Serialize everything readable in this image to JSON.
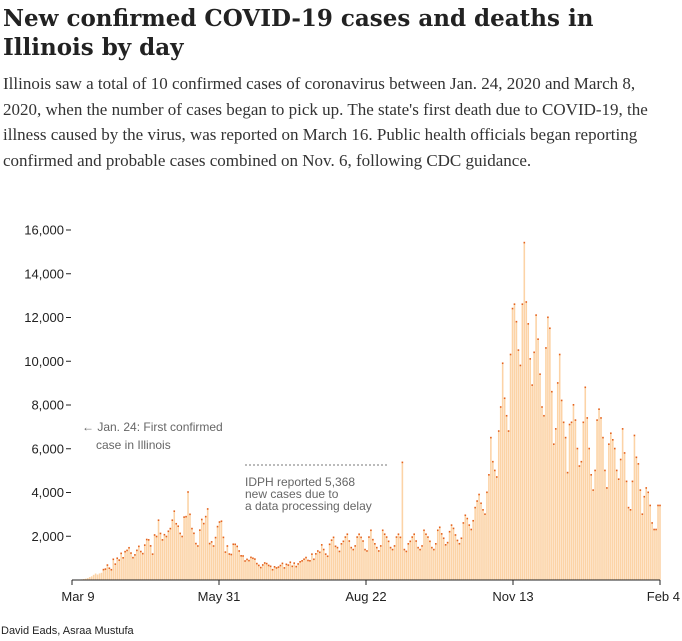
{
  "title": "New confirmed COVID-19 cases and deaths in Illinois by day",
  "subtitle": "Illinois saw a total of 10 confirmed cases of coronavirus between Jan. 24, 2020 and March 8, 2020, when the number of cases began to pick up. The state's first death due to COVID-19, the illness caused by the virus, was reported on March 16. Public health officials began reporting confirmed and probable cases combined on Nov. 6, following CDC guidance.",
  "credit": "David Eads, Asraa Mustufa",
  "colors": {
    "cases_bar": "#fcd3a6",
    "deaths_dot": "#e4621c",
    "axis": "#222222",
    "annotation": "#666666"
  },
  "chart_data": {
    "type": "bar",
    "x_start": "2020-03-09",
    "x_end": "2021-02-04",
    "x_ticks": [
      "Mar 9",
      "May 31",
      "Aug 22",
      "Nov 13",
      "Feb 4"
    ],
    "y_ticks": [
      "2,000",
      "4,000",
      "6,000",
      "8,000",
      "10,000",
      "12,000",
      "14,000",
      "16,000"
    ],
    "ylim": [
      0,
      16000
    ],
    "grid": false,
    "series": [
      {
        "values": [
          5,
          7,
          8,
          15,
          21,
          30,
          45,
          60,
          89,
          134,
          168,
          236,
          296,
          250,
          300,
          330,
          465,
          488,
          673,
          530,
          461,
          937,
          715,
          986,
          899,
          1209,
          1006,
          1287,
          1344,
          1465,
          1222,
          1013,
          1140,
          1346,
          1529,
          1293,
          1197,
          1585,
          1842,
          1826,
          1551,
          1173,
          2049,
          1980,
          2724,
          2119,
          1826,
          2062,
          1980,
          2219,
          2341,
          2724,
          3137,
          2563,
          2450,
          2122,
          1980,
          2866,
          2887,
          4014,
          2994,
          2341,
          2126,
          1656,
          1545,
          2270,
          2758,
          2570,
          2888,
          3239,
          1656,
          1734,
          1545,
          1930,
          2432,
          2641,
          2678,
          1940,
          1266,
          1545,
          1178,
          1156,
          1625,
          1622,
          1527,
          1317,
          1097,
          1090,
          860,
          934,
          878,
          1026,
          985,
          946,
          741,
          658,
          560,
          679,
          770,
          741,
          658,
          616,
          462,
          594,
          542,
          580,
          652,
          751,
          544,
          707,
          672,
          803,
          615,
          762,
          604,
          726,
          824,
          868,
          941,
          1018,
          884,
          869,
          1173,
          938,
          1187,
          1317,
          1257,
          1598,
          1384,
          1173,
          1076,
          1624,
          1812,
          1941,
          1532,
          1471,
          1298,
          1645,
          1759,
          1953,
          2084,
          1772,
          1471,
          1382,
          1549,
          1953,
          2084,
          1941,
          1772,
          1382,
          1319,
          1953,
          2264,
          1835,
          1645,
          1471,
          1319,
          1549,
          2264,
          2084,
          1953,
          1759,
          1471,
          1382,
          1549,
          1953,
          2084,
          1941,
          5368,
          1382,
          1298,
          1645,
          1759,
          1953,
          2084,
          1772,
          1471,
          1382,
          1549,
          2264,
          2084,
          1953,
          1759,
          1471,
          1382,
          1645,
          2264,
          2400,
          2100,
          1900,
          1600,
          1700,
          2200,
          2500,
          2350,
          2050,
          1800,
          1650,
          1900,
          2600,
          2950,
          2800,
          2500,
          2300,
          2700,
          3300,
          3600,
          3900,
          3500,
          3200,
          3000,
          4000,
          4800,
          6500,
          5400,
          5000,
          4700,
          6800,
          7900,
          9900,
          8300,
          7500,
          6800,
          10300,
          12400,
          12600,
          11800,
          10500,
          9800,
          12600,
          15415,
          12700,
          11700,
          10100,
          8900,
          10400,
          12100,
          11000,
          9400,
          7900,
          7500,
          10600,
          12000,
          11500,
          8600,
          6200,
          6900,
          9000,
          10300,
          8200,
          7200,
          6500,
          4900,
          7100,
          7200,
          8000,
          7300,
          6000,
          5200,
          5400,
          7200,
          8800,
          7400,
          6000,
          4800,
          4100,
          5000,
          7300,
          7800,
          7400,
          6500,
          5000,
          4200,
          6200,
          6700,
          6400,
          6000,
          5000,
          4600,
          5500,
          6900,
          5800,
          4500,
          3300,
          3200,
          4500,
          6600,
          5600,
          5300,
          4100,
          3000,
          3800,
          4200,
          4000,
          3400,
          2600,
          2300,
          2300,
          3400,
          3400
        ]
      }
    ],
    "annotations": {
      "first_case_line1": "← Jan. 24: First confirmed",
      "first_case_line2": "case in Illinois",
      "delay_line1": "IDPH reported 5,368",
      "delay_line2": "new cases due to",
      "delay_line3": "a data processing delay"
    }
  }
}
